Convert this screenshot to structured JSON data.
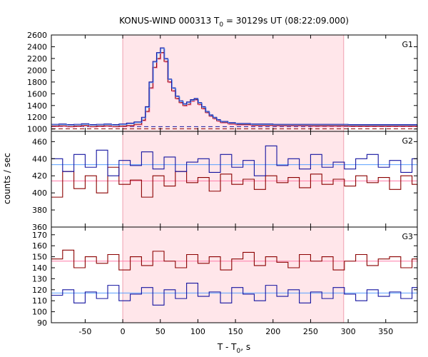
{
  "chart_data": {
    "type": "line",
    "title_prefix": "KONUS-WIND 000313 T",
    "title_sub": "0",
    "title_suffix": " = 30129s UT (08:22:09.000)",
    "xlabel_prefix": "T - T",
    "xlabel_sub": "0",
    "xlabel_suffix": ", s",
    "ylabel": "counts / sec",
    "xlim": [
      -95,
      392
    ],
    "xticks": [
      -50,
      0,
      50,
      100,
      150,
      200,
      250,
      300,
      350
    ],
    "highlight_region": [
      0,
      294
    ],
    "colors": {
      "ratio_a": "#8b0000",
      "ratio_b": "#1414a0",
      "fit_a": "#ff7aa8",
      "fit_b": "#5aa0ff",
      "highlight": "#ffe6ea",
      "background_line": "#1414a0"
    },
    "panels": [
      {
        "label": "G1",
        "ylim": [
          960,
          2600
        ],
        "yticks": [
          1000,
          1200,
          1400,
          1600,
          1800,
          2000,
          2200,
          2400,
          2600
        ],
        "background": 1040,
        "series": [
          {
            "name": "",
            "x": [
              -95,
              -85,
              -75,
              -65,
              -55,
              -45,
              -35,
              -25,
              -15,
              -5,
              5,
              15,
              25,
              30,
              35,
              40,
              45,
              50,
              55,
              60,
              65,
              70,
              75,
              80,
              85,
              90,
              95,
              100,
              105,
              110,
              115,
              120,
              125,
              130,
              140,
              150,
              170,
              200,
              250,
              300,
              350,
              392
            ],
            "y": [
              1050,
              1055,
              1045,
              1050,
              1060,
              1045,
              1050,
              1055,
              1045,
              1050,
              1060,
              1080,
              1150,
              1300,
              1700,
              2050,
              2200,
              2300,
              2150,
              1800,
              1650,
              1520,
              1450,
              1400,
              1420,
              1480,
              1500,
              1420,
              1350,
              1280,
              1220,
              1180,
              1140,
              1110,
              1090,
              1075,
              1065,
              1060,
              1055,
              1050,
              1050,
              1050
            ]
          },
          {
            "name": "",
            "x": [
              -95,
              -85,
              -75,
              -65,
              -55,
              -45,
              -35,
              -25,
              -15,
              -5,
              5,
              15,
              25,
              30,
              35,
              40,
              45,
              50,
              55,
              60,
              65,
              70,
              75,
              80,
              85,
              90,
              95,
              100,
              105,
              110,
              115,
              120,
              125,
              130,
              140,
              150,
              170,
              200,
              250,
              300,
              350,
              392
            ],
            "y": [
              1080,
              1085,
              1075,
              1080,
              1090,
              1075,
              1080,
              1085,
              1075,
              1085,
              1100,
              1120,
              1200,
              1380,
              1800,
              2150,
              2300,
              2380,
              2200,
              1850,
              1700,
              1560,
              1480,
              1430,
              1460,
              1500,
              1520,
              1450,
              1380,
              1300,
              1240,
              1200,
              1160,
              1130,
              1110,
              1095,
              1085,
              1080,
              1080,
              1075,
              1075,
              1075
            ]
          }
        ]
      },
      {
        "label": "G2",
        "ylim": [
          360,
          472
        ],
        "yticks": [
          360,
          380,
          400,
          420,
          440,
          460
        ],
        "fits": [
          414,
          433
        ],
        "series": [
          {
            "name": "",
            "x": [
              -95,
              -80,
              -65,
              -50,
              -35,
              -20,
              -5,
              10,
              25,
              40,
              55,
              70,
              85,
              100,
              115,
              130,
              145,
              160,
              175,
              190,
              205,
              220,
              235,
              250,
              265,
              280,
              295,
              310,
              325,
              340,
              355,
              370,
              385,
              392
            ],
            "y": [
              395,
              425,
              405,
              420,
              400,
              430,
              410,
              415,
              395,
              420,
              408,
              425,
              412,
              418,
              402,
              422,
              410,
              416,
              404,
              420,
              412,
              418,
              406,
              422,
              410,
              416,
              408,
              420,
              412,
              418,
              404,
              420,
              410,
              400
            ]
          },
          {
            "name": "",
            "x": [
              -95,
              -80,
              -65,
              -50,
              -35,
              -20,
              -5,
              10,
              25,
              40,
              55,
              70,
              85,
              100,
              115,
              130,
              145,
              160,
              175,
              190,
              205,
              220,
              235,
              250,
              265,
              280,
              295,
              310,
              325,
              340,
              355,
              370,
              385,
              392
            ],
            "y": [
              440,
              425,
              445,
              430,
              450,
              420,
              438,
              432,
              448,
              428,
              442,
              425,
              436,
              440,
              424,
              445,
              430,
              438,
              420,
              455,
              432,
              440,
              428,
              445,
              430,
              436,
              428,
              440,
              445,
              430,
              438,
              424,
              440,
              435
            ]
          }
        ]
      },
      {
        "label": "G3",
        "ylim": [
          90,
          177
        ],
        "yticks": [
          90,
          100,
          110,
          120,
          130,
          140,
          150,
          160,
          170
        ],
        "fits": [
          146,
          117
        ],
        "series": [
          {
            "name": "",
            "x": [
              -95,
              -80,
              -65,
              -50,
              -35,
              -20,
              -5,
              10,
              25,
              40,
              55,
              70,
              85,
              100,
              115,
              130,
              145,
              160,
              175,
              190,
              205,
              220,
              235,
              250,
              265,
              280,
              295,
              310,
              325,
              340,
              355,
              370,
              385,
              392
            ],
            "y": [
              148,
              156,
              140,
              150,
              144,
              152,
              138,
              150,
              142,
              155,
              146,
              140,
              152,
              144,
              150,
              138,
              148,
              154,
              142,
              150,
              145,
              140,
              152,
              146,
              150,
              138,
              146,
              152,
              142,
              148,
              150,
              140,
              148,
              145
            ]
          },
          {
            "name": "",
            "x": [
              -95,
              -80,
              -65,
              -50,
              -35,
              -20,
              -5,
              10,
              25,
              40,
              55,
              70,
              85,
              100,
              115,
              130,
              145,
              160,
              175,
              190,
              205,
              220,
              235,
              250,
              265,
              280,
              295,
              310,
              325,
              340,
              355,
              370,
              385,
              392
            ],
            "y": [
              115,
              120,
              108,
              118,
              112,
              124,
              110,
              116,
              122,
              106,
              120,
              112,
              126,
              114,
              118,
              108,
              122,
              116,
              110,
              124,
              114,
              120,
              108,
              118,
              112,
              122,
              116,
              110,
              120,
              114,
              118,
              112,
              122,
              116
            ]
          }
        ]
      }
    ]
  }
}
